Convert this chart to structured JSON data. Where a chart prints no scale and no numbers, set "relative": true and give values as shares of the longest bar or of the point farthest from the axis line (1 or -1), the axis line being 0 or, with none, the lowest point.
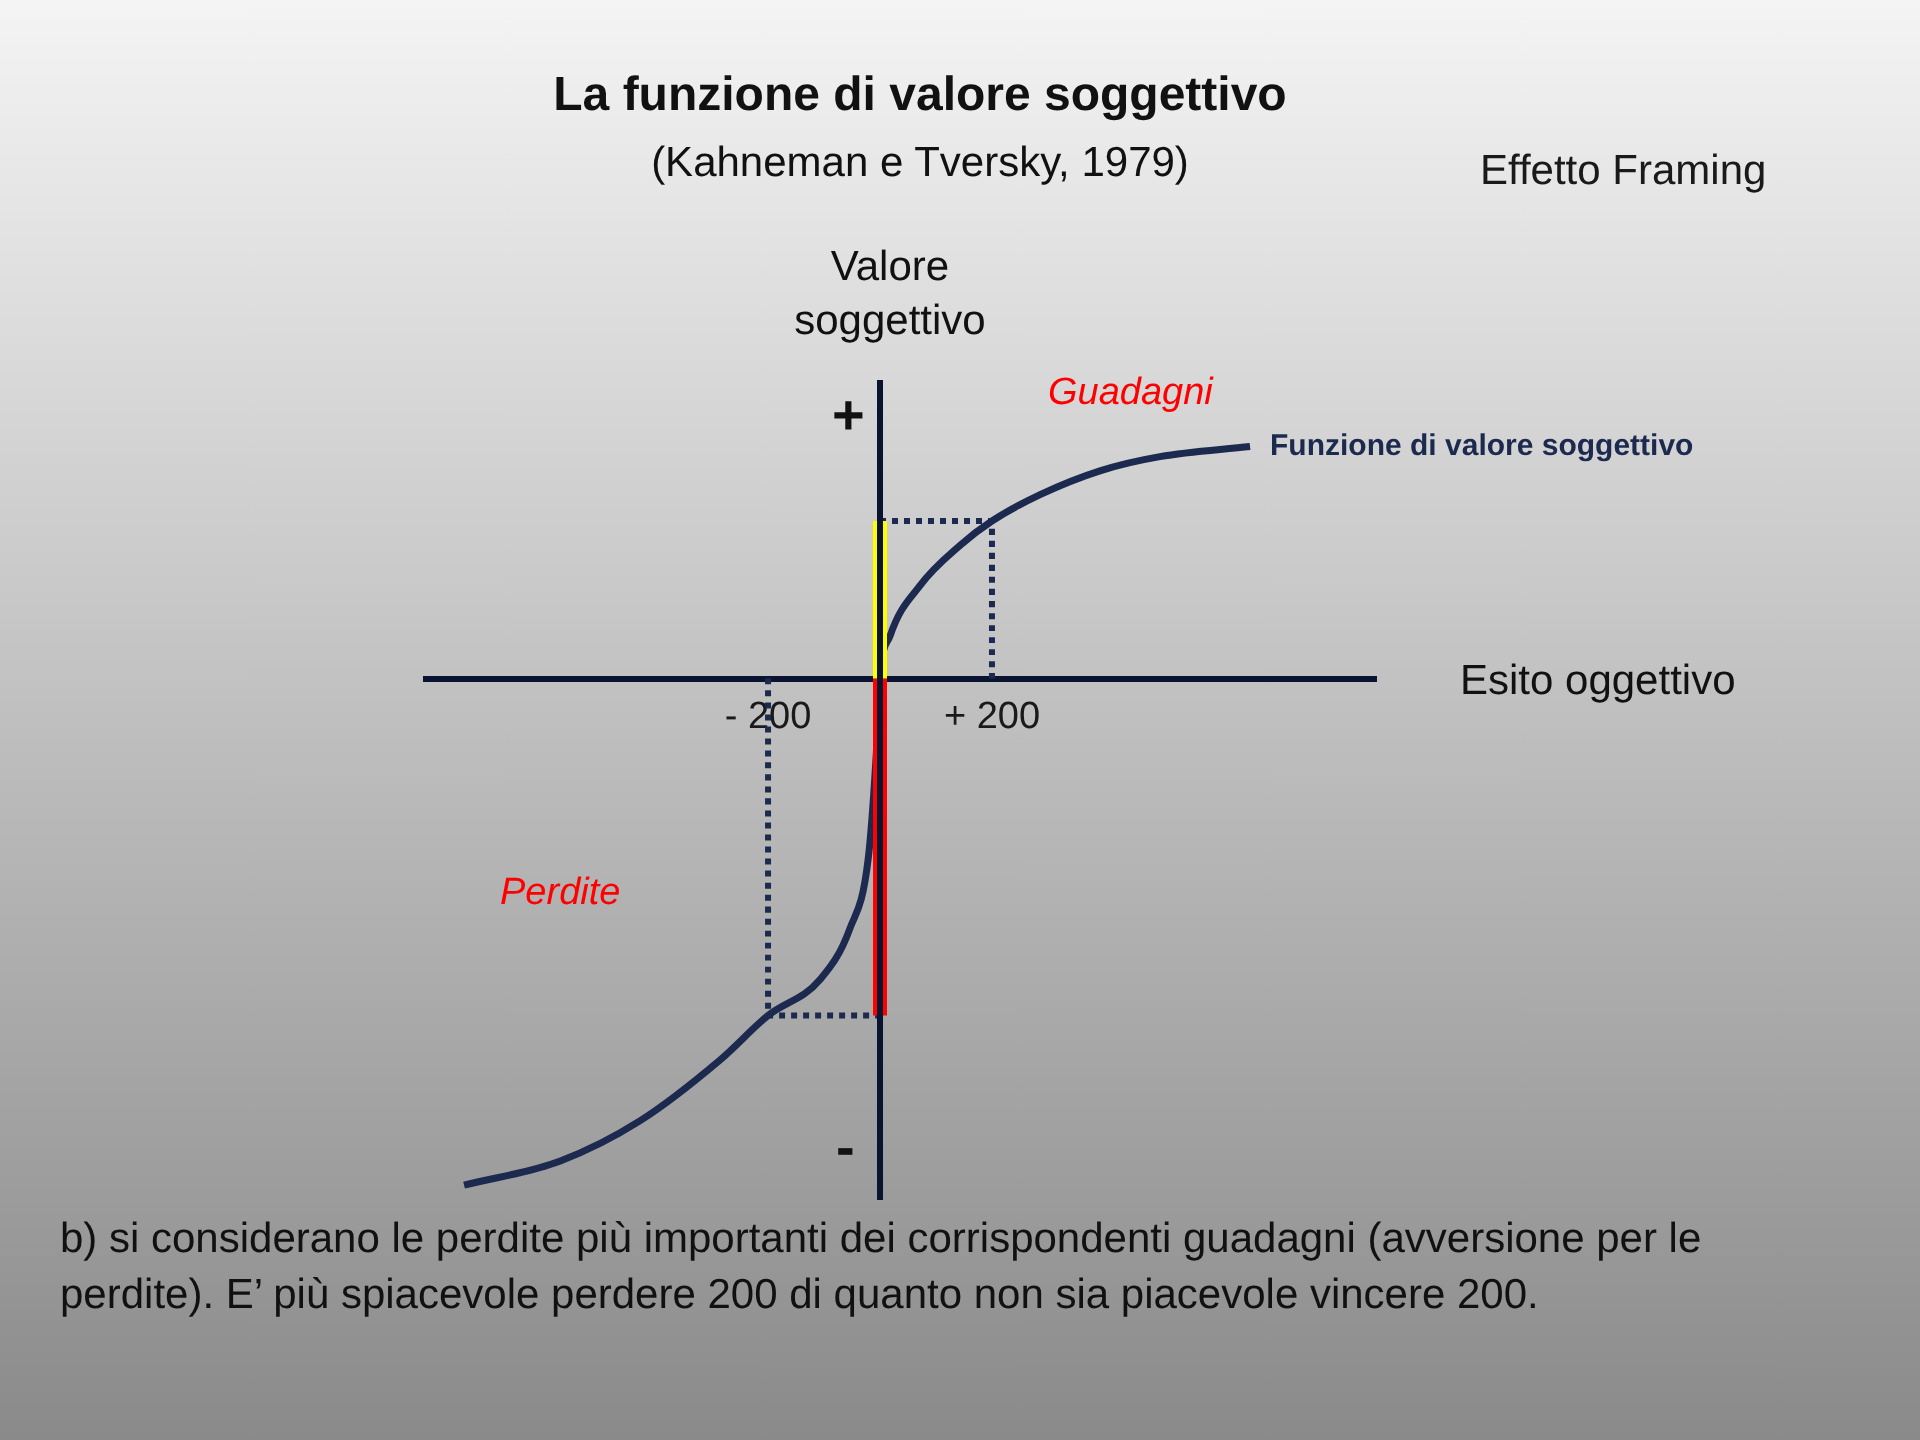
{
  "chart_data": {
    "type": "line",
    "title": "La funzione di valore soggettivo",
    "subtitle": "(Kahneman e Tversky, 1979)",
    "xlabel": "Esito oggettivo",
    "ylabel": "Valore soggettivo",
    "relative": true,
    "xlim": [
      -811,
      886
    ],
    "xticks": [
      {
        "value": -200,
        "label": "- 200"
      },
      {
        "value": 200,
        "label": "+ 200"
      }
    ],
    "series": [
      {
        "name": "Funzione di valore soggettivo",
        "color": "#1c2a4f",
        "x": [
          -743,
          -571,
          -429,
          -286,
          -200,
          -107,
          -54,
          -21,
          -7,
          0,
          18,
          71,
          143,
          200,
          286,
          393,
          500,
          661
        ],
        "values": [
          -1,
          -0.952,
          -0.873,
          -0.753,
          -0.665,
          -0.594,
          -0.494,
          -0.355,
          -0.155,
          0,
          0.084,
          0.183,
          0.263,
          0.311,
          0.363,
          0.41,
          0.438,
          0.458
        ]
      },
      {
        "color": "#1c2a4f",
        "line_style": "dotted",
        "x": [
          -200,
          -200,
          0
        ],
        "values": [
          0,
          -0.665,
          -0.665
        ]
      },
      {
        "color": "#1c2a4f",
        "line_style": "dotted",
        "x": [
          0,
          200,
          200
        ],
        "values": [
          0.311,
          0.311,
          0
        ]
      },
      {
        "color": "#ffff00",
        "x": [
          0,
          0
        ],
        "values": [
          0,
          0.311
        ]
      },
      {
        "color": "#ff0000",
        "x": [
          0,
          0
        ],
        "values": [
          0,
          -0.665
        ]
      }
    ],
    "annotations": [
      "Effetto Framing",
      "+",
      "-",
      "Guadagni",
      "Perdite",
      "b) si considerano le perdite più importanti dei corrispondenti guadagni (avversione per le perdite). E’ più spiacevole perdere 200 di quanto non sia piacevole vincere 200."
    ],
    "grid": false,
    "legend": false,
    "marker": "none"
  }
}
